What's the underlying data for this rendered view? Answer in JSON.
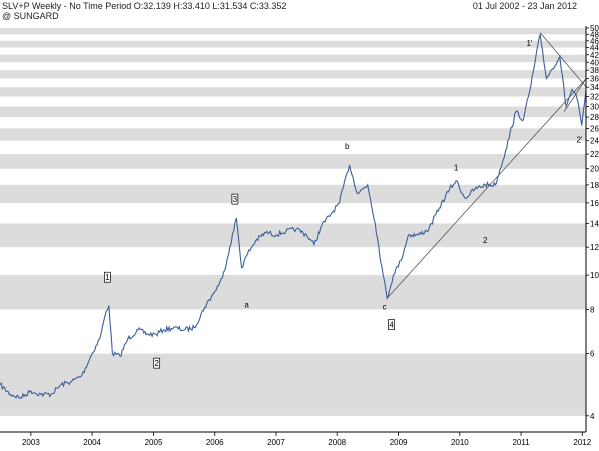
{
  "header": {
    "title": "SLV+P Weekly - No Time Period O:32.139 H:33.410 L:31.534 C:33.352",
    "source": "@ SUNGARD",
    "date_range": "01 Jul 2002 - 23 Jan 2012"
  },
  "colors": {
    "price": "#3a5f99",
    "band": "#dcdcdc",
    "trendline": "#555555",
    "axis": "#000000"
  },
  "chart_data": {
    "type": "line",
    "title": "",
    "xlabel": "",
    "ylabel": "",
    "y_scale": "log",
    "ylim": [
      3.6,
      50
    ],
    "xlim": [
      "2002-07-01",
      "2012-01-23"
    ],
    "grid": "alternating horizontal bands",
    "x_ticks": [
      "2003",
      "2004",
      "2005",
      "2006",
      "2007",
      "2008",
      "2009",
      "2010",
      "2011",
      "2012"
    ],
    "y_ticks": [
      4,
      6,
      8,
      10,
      12,
      14,
      16,
      18,
      20,
      22,
      24,
      26,
      28,
      30,
      32,
      34,
      36,
      38,
      40,
      42,
      44,
      46,
      48,
      50
    ],
    "series": [
      {
        "x": [
          "2002-07-01",
          "2002-09-01",
          "2002-11-01",
          "2003-01-01",
          "2003-03-01",
          "2003-05-01",
          "2003-07-01",
          "2003-09-01",
          "2003-11-01",
          "2004-01-01",
          "2004-02-15",
          "2004-03-25",
          "2004-04-10",
          "2004-05-01",
          "2004-06-15",
          "2004-08-01",
          "2004-10-01",
          "2004-12-01",
          "2005-01-15",
          "2005-03-01",
          "2005-05-01",
          "2005-07-01",
          "2005-09-01",
          "2005-11-01",
          "2006-01-01",
          "2006-02-15",
          "2006-04-01",
          "2006-05-10",
          "2006-06-10",
          "2006-07-15",
          "2006-09-01",
          "2006-11-01",
          "2007-01-01",
          "2007-03-01",
          "2007-05-01",
          "2007-07-01",
          "2007-08-15",
          "2007-10-01",
          "2007-12-01",
          "2008-01-15",
          "2008-03-01",
          "2008-03-15",
          "2008-05-01",
          "2008-07-01",
          "2008-08-15",
          "2008-10-01",
          "2008-10-25",
          "2008-12-01",
          "2009-01-15",
          "2009-03-01",
          "2009-05-01",
          "2009-07-01",
          "2009-09-01",
          "2009-11-01",
          "2009-12-10",
          "2010-02-01",
          "2010-04-01",
          "2010-06-01",
          "2010-08-01",
          "2010-10-01",
          "2010-12-01",
          "2011-01-15",
          "2011-03-01",
          "2011-04-25",
          "2011-06-01",
          "2011-07-01",
          "2011-08-20",
          "2011-09-26",
          "2011-11-01",
          "2011-12-01",
          "2011-12-29",
          "2012-01-23"
        ],
        "values": [
          4.9,
          4.6,
          4.5,
          4.7,
          4.6,
          4.6,
          4.9,
          5.0,
          5.2,
          6.0,
          6.6,
          7.9,
          8.2,
          6.0,
          5.9,
          6.6,
          7.0,
          6.8,
          6.8,
          7.0,
          7.1,
          7.0,
          7.1,
          8.1,
          9.0,
          9.8,
          12.0,
          14.5,
          10.5,
          11.5,
          12.5,
          13.2,
          13.0,
          13.3,
          13.5,
          13.0,
          12.2,
          13.8,
          15.0,
          16.0,
          19.5,
          20.5,
          17.0,
          18.0,
          14.0,
          10.0,
          8.6,
          10.0,
          11.0,
          13.0,
          13.0,
          13.5,
          15.5,
          17.5,
          18.5,
          16.5,
          17.5,
          18.0,
          18.0,
          22.5,
          29.0,
          27.5,
          34.5,
          48.0,
          36.0,
          38.0,
          41.5,
          30.0,
          33.5,
          31.5,
          26.5,
          33.35
        ]
      }
    ],
    "annotations": [
      {
        "label": "1",
        "boxed": true,
        "x": "2004-04-01",
        "y": 9.8
      },
      {
        "label": "2",
        "boxed": true,
        "x": "2005-01-20",
        "y": 5.6
      },
      {
        "label": "a",
        "boxed": false,
        "x": "2006-07-10",
        "y": 8.2
      },
      {
        "label": "3",
        "boxed": true,
        "x": "2006-05-01",
        "y": 16.3
      },
      {
        "label": "b",
        "boxed": false,
        "x": "2008-03-01",
        "y": 23.0
      },
      {
        "label": "c",
        "boxed": false,
        "x": "2008-10-10",
        "y": 8.1
      },
      {
        "label": "4",
        "boxed": true,
        "x": "2008-11-20",
        "y": 7.2
      },
      {
        "label": "1",
        "boxed": false,
        "x": "2009-12-10",
        "y": 20.0
      },
      {
        "label": "2",
        "boxed": false,
        "x": "2010-06-01",
        "y": 12.5
      },
      {
        "label": "1'",
        "boxed": false,
        "x": "2011-02-20",
        "y": 45.0
      },
      {
        "label": "2'",
        "boxed": false,
        "x": "2011-12-15",
        "y": 24.0
      }
    ],
    "trendlines": [
      {
        "from": [
          "2008-10-25",
          8.6
        ],
        "to": [
          "2012-01-25",
          36.0
        ]
      },
      {
        "from": [
          "2011-04-25",
          48.5
        ],
        "to": [
          "2012-01-25",
          34.0
        ]
      },
      {
        "from": [
          "2011-09-15",
          29.0
        ],
        "to": [
          "2012-01-25",
          36.0
        ]
      }
    ]
  }
}
